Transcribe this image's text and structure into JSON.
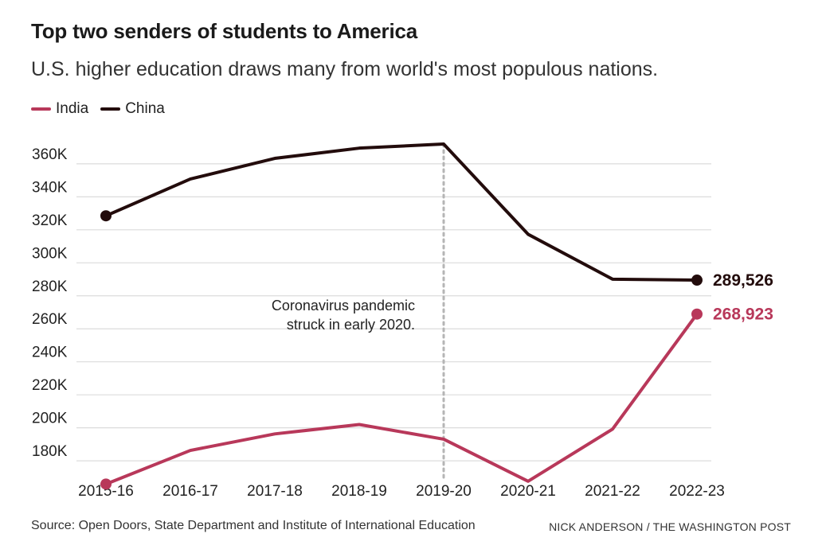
{
  "title": "Top two senders of students to America",
  "subtitle": "U.S. higher education draws many from world's most populous nations.",
  "source": "Source: Open Doors, State Department and Institute of International Education",
  "credit": "NICK ANDERSON / THE WASHINGTON POST",
  "colors": {
    "india": "#b8385a",
    "china": "#230c0c",
    "grid": "#dcdcdc",
    "annotation_line": "#b5b5b5"
  },
  "chart_data": {
    "type": "line",
    "title": "Top two senders of students to America",
    "xlabel": "",
    "ylabel": "",
    "categories": [
      "2015-16",
      "2016-17",
      "2017-18",
      "2018-19",
      "2019-20",
      "2020-21",
      "2021-22",
      "2022-23"
    ],
    "ylim": [
      168000,
      372000
    ],
    "yticks": [
      180000,
      200000,
      220000,
      240000,
      260000,
      280000,
      300000,
      320000,
      340000,
      360000
    ],
    "ytick_labels": [
      "180K",
      "200K",
      "220K",
      "240K",
      "260K",
      "280K",
      "300K",
      "320K",
      "340K",
      "360K"
    ],
    "series": [
      {
        "name": "India",
        "key": "india",
        "values": [
          165900,
          186300,
          196300,
          202000,
          193100,
          167600,
          199200,
          268923
        ],
        "end_label": "268,923"
      },
      {
        "name": "China",
        "key": "china",
        "values": [
          328500,
          350800,
          363300,
          369500,
          372000,
          317300,
          290100,
          289526
        ],
        "end_label": "289,526"
      }
    ],
    "annotation": {
      "category": "2019-20",
      "lines": [
        "Coronavirus pandemic",
        "struck in early 2020."
      ]
    },
    "legend_position": "top-left",
    "grid": true
  }
}
